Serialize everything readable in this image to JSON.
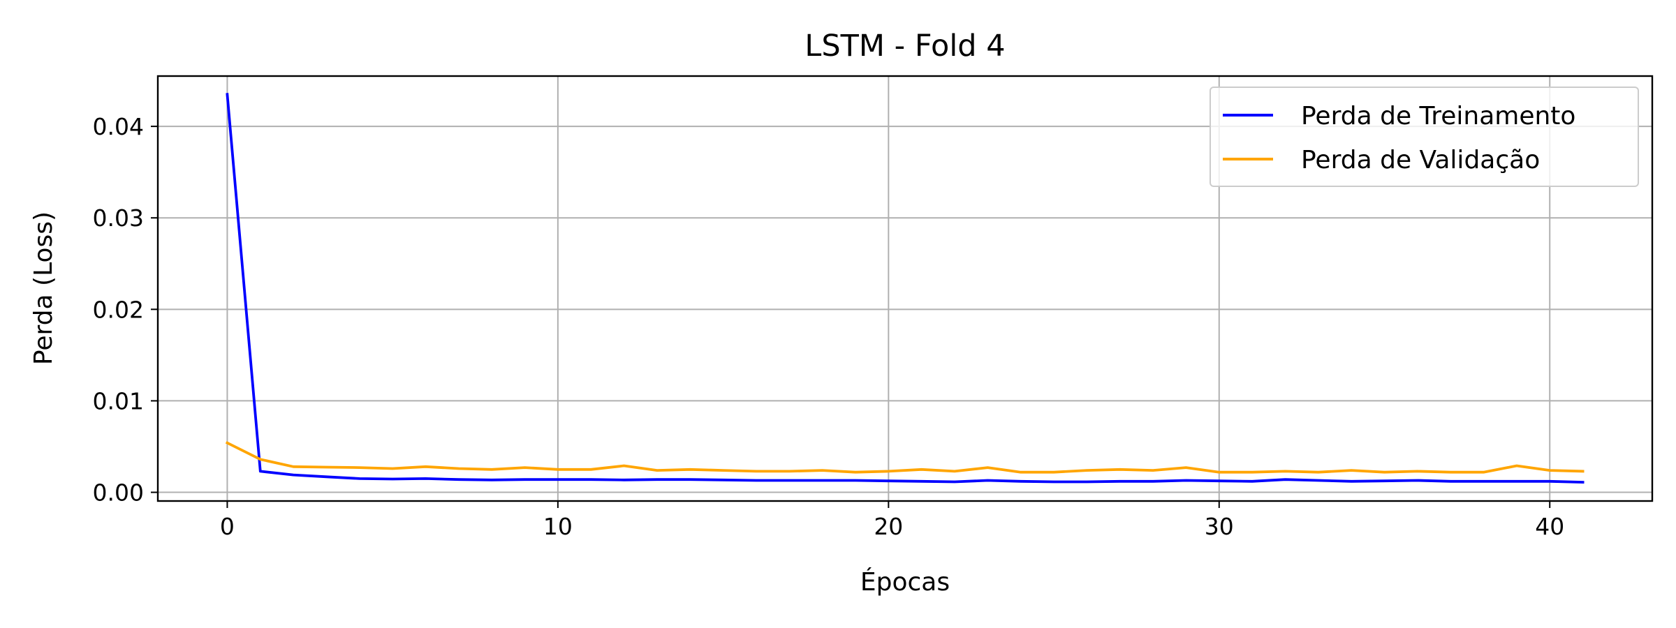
{
  "chart_data": {
    "type": "line",
    "title": "LSTM - Fold 4",
    "xlabel": "Épocas",
    "ylabel": "Perda (Loss)",
    "xlim": [
      -2.1,
      43.1
    ],
    "ylim": [
      -0.00095,
      0.0455
    ],
    "xticks": [
      0,
      10,
      20,
      30,
      40
    ],
    "xtick_labels": [
      "0",
      "10",
      "20",
      "30",
      "40"
    ],
    "yticks": [
      0.0,
      0.01,
      0.02,
      0.03,
      0.04
    ],
    "ytick_labels": [
      "0.00",
      "0.01",
      "0.02",
      "0.03",
      "0.04"
    ],
    "grid": true,
    "legend": "top-right",
    "x": [
      0,
      1,
      2,
      3,
      4,
      5,
      6,
      7,
      8,
      9,
      10,
      11,
      12,
      13,
      14,
      15,
      16,
      17,
      18,
      19,
      20,
      21,
      22,
      23,
      24,
      25,
      26,
      27,
      28,
      29,
      30,
      31,
      32,
      33,
      34,
      35,
      36,
      37,
      38,
      39,
      40,
      41
    ],
    "series": [
      {
        "name": "Perda de Treinamento",
        "color": "#0000ff",
        "values": [
          0.0435,
          0.0023,
          0.0019,
          0.0017,
          0.0015,
          0.00145,
          0.0015,
          0.0014,
          0.00135,
          0.0014,
          0.0014,
          0.0014,
          0.00135,
          0.0014,
          0.0014,
          0.00135,
          0.0013,
          0.0013,
          0.0013,
          0.0013,
          0.00125,
          0.0012,
          0.00115,
          0.0013,
          0.0012,
          0.00115,
          0.00115,
          0.0012,
          0.0012,
          0.0013,
          0.00125,
          0.0012,
          0.0014,
          0.0013,
          0.0012,
          0.00125,
          0.0013,
          0.0012,
          0.0012,
          0.0012,
          0.0012,
          0.0011
        ]
      },
      {
        "name": "Perda de Validação",
        "color": "#ffa500",
        "values": [
          0.0054,
          0.0036,
          0.0028,
          0.00275,
          0.0027,
          0.0026,
          0.0028,
          0.0026,
          0.0025,
          0.0027,
          0.0025,
          0.0025,
          0.0029,
          0.0024,
          0.0025,
          0.0024,
          0.0023,
          0.0023,
          0.0024,
          0.0022,
          0.0023,
          0.0025,
          0.0023,
          0.0027,
          0.0022,
          0.0022,
          0.0024,
          0.0025,
          0.0024,
          0.0027,
          0.0022,
          0.0022,
          0.0023,
          0.0022,
          0.0024,
          0.0022,
          0.0023,
          0.0022,
          0.0022,
          0.0029,
          0.0024,
          0.0023
        ]
      }
    ]
  }
}
